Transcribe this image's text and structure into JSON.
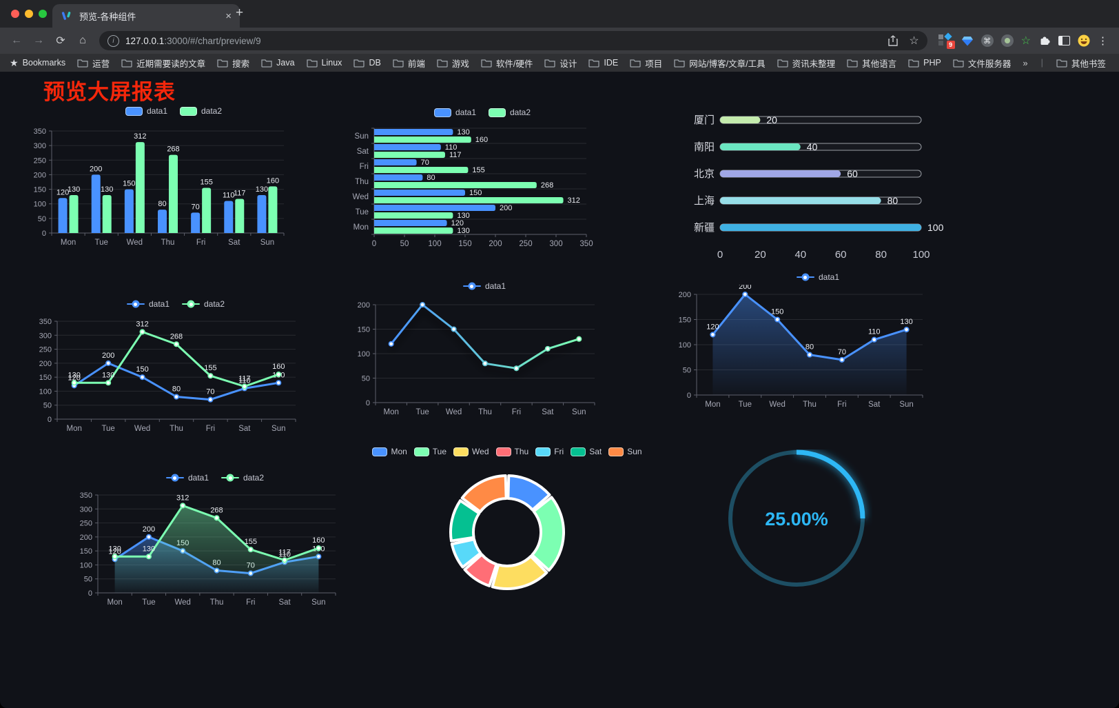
{
  "browser": {
    "window_controls": [
      "close",
      "minimize",
      "zoom"
    ],
    "tab": {
      "title": "预览-各种组件"
    },
    "url_host": "127.0.0.1",
    "url_rest": ":3000/#/chart/preview/9",
    "extension_badge": "9",
    "icons": {
      "back": "←",
      "forward": "→",
      "reload": "⟳",
      "home": "⌂",
      "info": "i",
      "star": "☆",
      "menu": "⋮",
      "command": "⌘",
      "star_green": "☆",
      "overflow": "»",
      "new_tab": "+",
      "close_tab": "×",
      "bookmarks_star": "★"
    },
    "bookmarks_label": "Bookmarks",
    "bookmarks": [
      "运营",
      "近期需要读的文章",
      "搜索",
      "Java",
      "Linux",
      "DB",
      "前端",
      "游戏",
      "软件/硬件",
      "设计",
      "IDE",
      "项目",
      "网站/博客/文章/工具",
      "资讯未整理",
      "其他语言",
      "PHP",
      "文件服务器"
    ],
    "other_bookmarks": "其他书签"
  },
  "page": {
    "title": "预览大屏报表",
    "title_color": "#F5270B",
    "background": "#101218"
  },
  "chart_data": [
    {
      "id": "grouped-bar",
      "type": "bar",
      "categories": [
        "Mon",
        "Tue",
        "Wed",
        "Thu",
        "Fri",
        "Sat",
        "Sun"
      ],
      "series": [
        {
          "name": "data1",
          "color": "#4992ff",
          "values": [
            120,
            200,
            150,
            80,
            70,
            110,
            130
          ]
        },
        {
          "name": "data2",
          "color": "#7cffb2",
          "values": [
            130,
            130,
            312,
            268,
            155,
            117,
            160
          ]
        }
      ],
      "ylim": [
        0,
        350
      ],
      "ytick_step": 50,
      "value_labels": true,
      "grid": true,
      "legend_position": "top"
    },
    {
      "id": "grouped-bar-horizontal",
      "type": "bar-horizontal",
      "categories": [
        "Mon",
        "Tue",
        "Wed",
        "Thu",
        "Fri",
        "Sat",
        "Sun"
      ],
      "series": [
        {
          "name": "data1",
          "color": "#4992ff",
          "values": [
            120,
            200,
            150,
            80,
            70,
            110,
            130
          ]
        },
        {
          "name": "data2",
          "color": "#7cffb2",
          "values": [
            130,
            130,
            312,
            268,
            155,
            117,
            160
          ]
        }
      ],
      "xlim": [
        0,
        350
      ],
      "xtick_step": 50,
      "value_labels": true,
      "grid": true,
      "legend_position": "top"
    },
    {
      "id": "city-progress",
      "type": "progress",
      "xlim": [
        0,
        100
      ],
      "xticks": [
        0,
        20,
        40,
        60,
        80,
        100
      ],
      "rows": [
        {
          "label": "厦门",
          "value": 20,
          "color": "#c4ebad"
        },
        {
          "label": "南阳",
          "value": 40,
          "color": "#6be6c1"
        },
        {
          "label": "北京",
          "value": 60,
          "color": "#a0a7e6"
        },
        {
          "label": "上海",
          "value": 80,
          "color": "#96dee8"
        },
        {
          "label": "新疆",
          "value": 100,
          "color": "#3fb1e3"
        }
      ]
    },
    {
      "id": "two-series-line",
      "type": "line",
      "categories": [
        "Mon",
        "Tue",
        "Wed",
        "Thu",
        "Fri",
        "Sat",
        "Sun"
      ],
      "series": [
        {
          "name": "data1",
          "color": "#4992ff",
          "values": [
            120,
            200,
            150,
            80,
            70,
            110,
            130
          ]
        },
        {
          "name": "data2",
          "color": "#7cffb2",
          "values": [
            130,
            130,
            312,
            268,
            155,
            117,
            160
          ]
        }
      ],
      "ylim": [
        0,
        350
      ],
      "ytick_step": 50,
      "value_labels": true,
      "grid": true,
      "legend_position": "top"
    },
    {
      "id": "gradient-shadow-line",
      "type": "line",
      "categories": [
        "Mon",
        "Tue",
        "Wed",
        "Thu",
        "Fri",
        "Sat",
        "Sun"
      ],
      "series": [
        {
          "name": "data1",
          "colors": [
            "#4992ff",
            "#7cffb2"
          ],
          "shadow": true,
          "values": [
            120,
            200,
            150,
            80,
            70,
            110,
            130
          ]
        }
      ],
      "ylim": [
        0,
        200
      ],
      "ytick_step": 50,
      "value_labels": false,
      "grid": true,
      "legend_position": "top"
    },
    {
      "id": "area-line",
      "type": "line",
      "categories": [
        "Mon",
        "Tue",
        "Wed",
        "Thu",
        "Fri",
        "Sat",
        "Sun"
      ],
      "series": [
        {
          "name": "data1",
          "color": "#4992ff",
          "area": true,
          "values": [
            120,
            200,
            150,
            80,
            70,
            110,
            130
          ]
        }
      ],
      "ylim": [
        0,
        200
      ],
      "ytick_step": 50,
      "value_labels": true,
      "grid": true,
      "legend_position": "top"
    },
    {
      "id": "two-series-area-line",
      "type": "line",
      "categories": [
        "Mon",
        "Tue",
        "Wed",
        "Thu",
        "Fri",
        "Sat",
        "Sun"
      ],
      "series": [
        {
          "name": "data1",
          "color": "#4992ff",
          "area": true,
          "values": [
            120,
            200,
            150,
            80,
            70,
            110,
            130
          ]
        },
        {
          "name": "data2",
          "color": "#7cffb2",
          "area": true,
          "values": [
            130,
            130,
            312,
            268,
            155,
            117,
            160
          ]
        }
      ],
      "ylim": [
        0,
        350
      ],
      "ytick_step": 50,
      "value_labels": true,
      "grid": true,
      "legend_position": "top"
    },
    {
      "id": "weekday-donut",
      "type": "pie",
      "categories": [
        "Mon",
        "Tue",
        "Wed",
        "Thu",
        "Fri",
        "Sat",
        "Sun"
      ],
      "values": [
        120,
        200,
        150,
        80,
        70,
        110,
        130
      ],
      "colors": [
        "#4992ff",
        "#7cffb2",
        "#fddd60",
        "#ff6e76",
        "#58d9f9",
        "#05c091",
        "#ff8a45"
      ],
      "legend_position": "top"
    },
    {
      "id": "percent-gauge",
      "type": "gauge",
      "value": 25,
      "label": "25.00%",
      "color": "#2DB7F5",
      "track_color": "#1D4E63"
    }
  ]
}
